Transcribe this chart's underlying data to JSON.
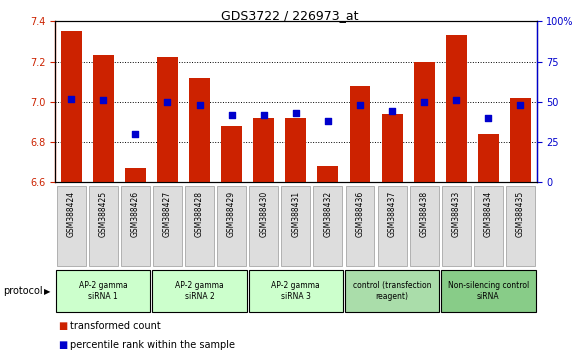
{
  "title": "GDS3722 / 226973_at",
  "categories": [
    "GSM388424",
    "GSM388425",
    "GSM388426",
    "GSM388427",
    "GSM388428",
    "GSM388429",
    "GSM388430",
    "GSM388431",
    "GSM388432",
    "GSM388436",
    "GSM388437",
    "GSM388438",
    "GSM388433",
    "GSM388434",
    "GSM388435"
  ],
  "bar_values": [
    7.35,
    7.23,
    6.67,
    7.22,
    7.12,
    6.88,
    6.92,
    6.92,
    6.68,
    7.08,
    6.94,
    7.2,
    7.33,
    6.84,
    7.02
  ],
  "dot_values_pct": [
    52,
    51,
    30,
    50,
    48,
    42,
    42,
    43,
    38,
    48,
    44,
    50,
    51,
    40,
    48
  ],
  "ylim_left": [
    6.6,
    7.4
  ],
  "ylim_right": [
    0,
    100
  ],
  "yticks_left": [
    6.6,
    6.8,
    7.0,
    7.2,
    7.4
  ],
  "yticks_right": [
    0,
    25,
    50,
    75,
    100
  ],
  "bar_color": "#cc2200",
  "dot_color": "#0000cc",
  "bg_color": "#ffffff",
  "protocol_groups": [
    {
      "label": "AP-2 gamma\nsiRNA 1",
      "start": 0,
      "end": 2,
      "color": "#ccffcc"
    },
    {
      "label": "AP-2 gamma\nsiRNA 2",
      "start": 3,
      "end": 5,
      "color": "#ccffcc"
    },
    {
      "label": "AP-2 gamma\nsiRNA 3",
      "start": 6,
      "end": 8,
      "color": "#ccffcc"
    },
    {
      "label": "control (transfection\nreagent)",
      "start": 9,
      "end": 11,
      "color": "#aaddaa"
    },
    {
      "label": "Non-silencing control\nsiRNA",
      "start": 12,
      "end": 14,
      "color": "#88cc88"
    }
  ],
  "legend_items": [
    {
      "label": "transformed count",
      "color": "#cc2200"
    },
    {
      "label": "percentile rank within the sample",
      "color": "#0000cc"
    }
  ],
  "left_axis_color": "#cc2200",
  "right_axis_color": "#0000cc",
  "protocol_label": "protocol"
}
